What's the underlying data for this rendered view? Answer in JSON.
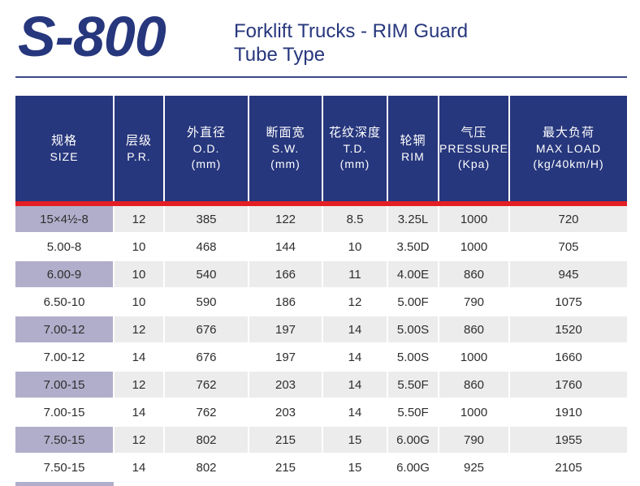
{
  "header": {
    "model": "S-800",
    "subtitle_line1": "Forklift Trucks - RIM Guard",
    "subtitle_line2": "Tube Type"
  },
  "table": {
    "columns": [
      {
        "zh": "规格",
        "en": "SIZE",
        "unit": ""
      },
      {
        "zh": "层级",
        "en": "P.R.",
        "unit": ""
      },
      {
        "zh": "外直径",
        "en": "O.D.",
        "unit": "(mm)"
      },
      {
        "zh": "断面宽",
        "en": "S.W.",
        "unit": "(mm)"
      },
      {
        "zh": "花纹深度",
        "en": "T.D.",
        "unit": "(mm)"
      },
      {
        "zh": "轮辋",
        "en": "RIM",
        "unit": ""
      },
      {
        "zh": "气压",
        "en": "PRESSURE",
        "unit": "(Kpa)"
      },
      {
        "zh": "最大负荷",
        "en": "MAX LOAD",
        "unit": "(kg/40km/H)"
      }
    ],
    "rows": [
      [
        "15×4½-8",
        "12",
        "385",
        "122",
        "8.5",
        "3.25L",
        "1000",
        "720"
      ],
      [
        "5.00-8",
        "10",
        "468",
        "144",
        "10",
        "3.50D",
        "1000",
        "705"
      ],
      [
        "6.00-9",
        "10",
        "540",
        "166",
        "11",
        "4.00E",
        "860",
        "945"
      ],
      [
        "6.50-10",
        "10",
        "590",
        "186",
        "12",
        "5.00F",
        "790",
        "1075"
      ],
      [
        "7.00-12",
        "12",
        "676",
        "197",
        "14",
        "5.00S",
        "860",
        "1520"
      ],
      [
        "7.00-12",
        "14",
        "676",
        "197",
        "14",
        "5.00S",
        "1000",
        "1660"
      ],
      [
        "7.00-15",
        "12",
        "762",
        "203",
        "14",
        "5.50F",
        "860",
        "1760"
      ],
      [
        "7.00-15",
        "14",
        "762",
        "203",
        "14",
        "5.50F",
        "1000",
        "1910"
      ],
      [
        "7.50-15",
        "12",
        "802",
        "215",
        "15",
        "6.00G",
        "790",
        "1955"
      ],
      [
        "7.50-15",
        "14",
        "802",
        "215",
        "15",
        "6.00G",
        "925",
        "2105"
      ]
    ]
  },
  "colors": {
    "brand_blue": "#27377d",
    "accent_red": "#e31e24",
    "size_cell_shade": "#b1aecb",
    "row_shade": "#ececec"
  }
}
